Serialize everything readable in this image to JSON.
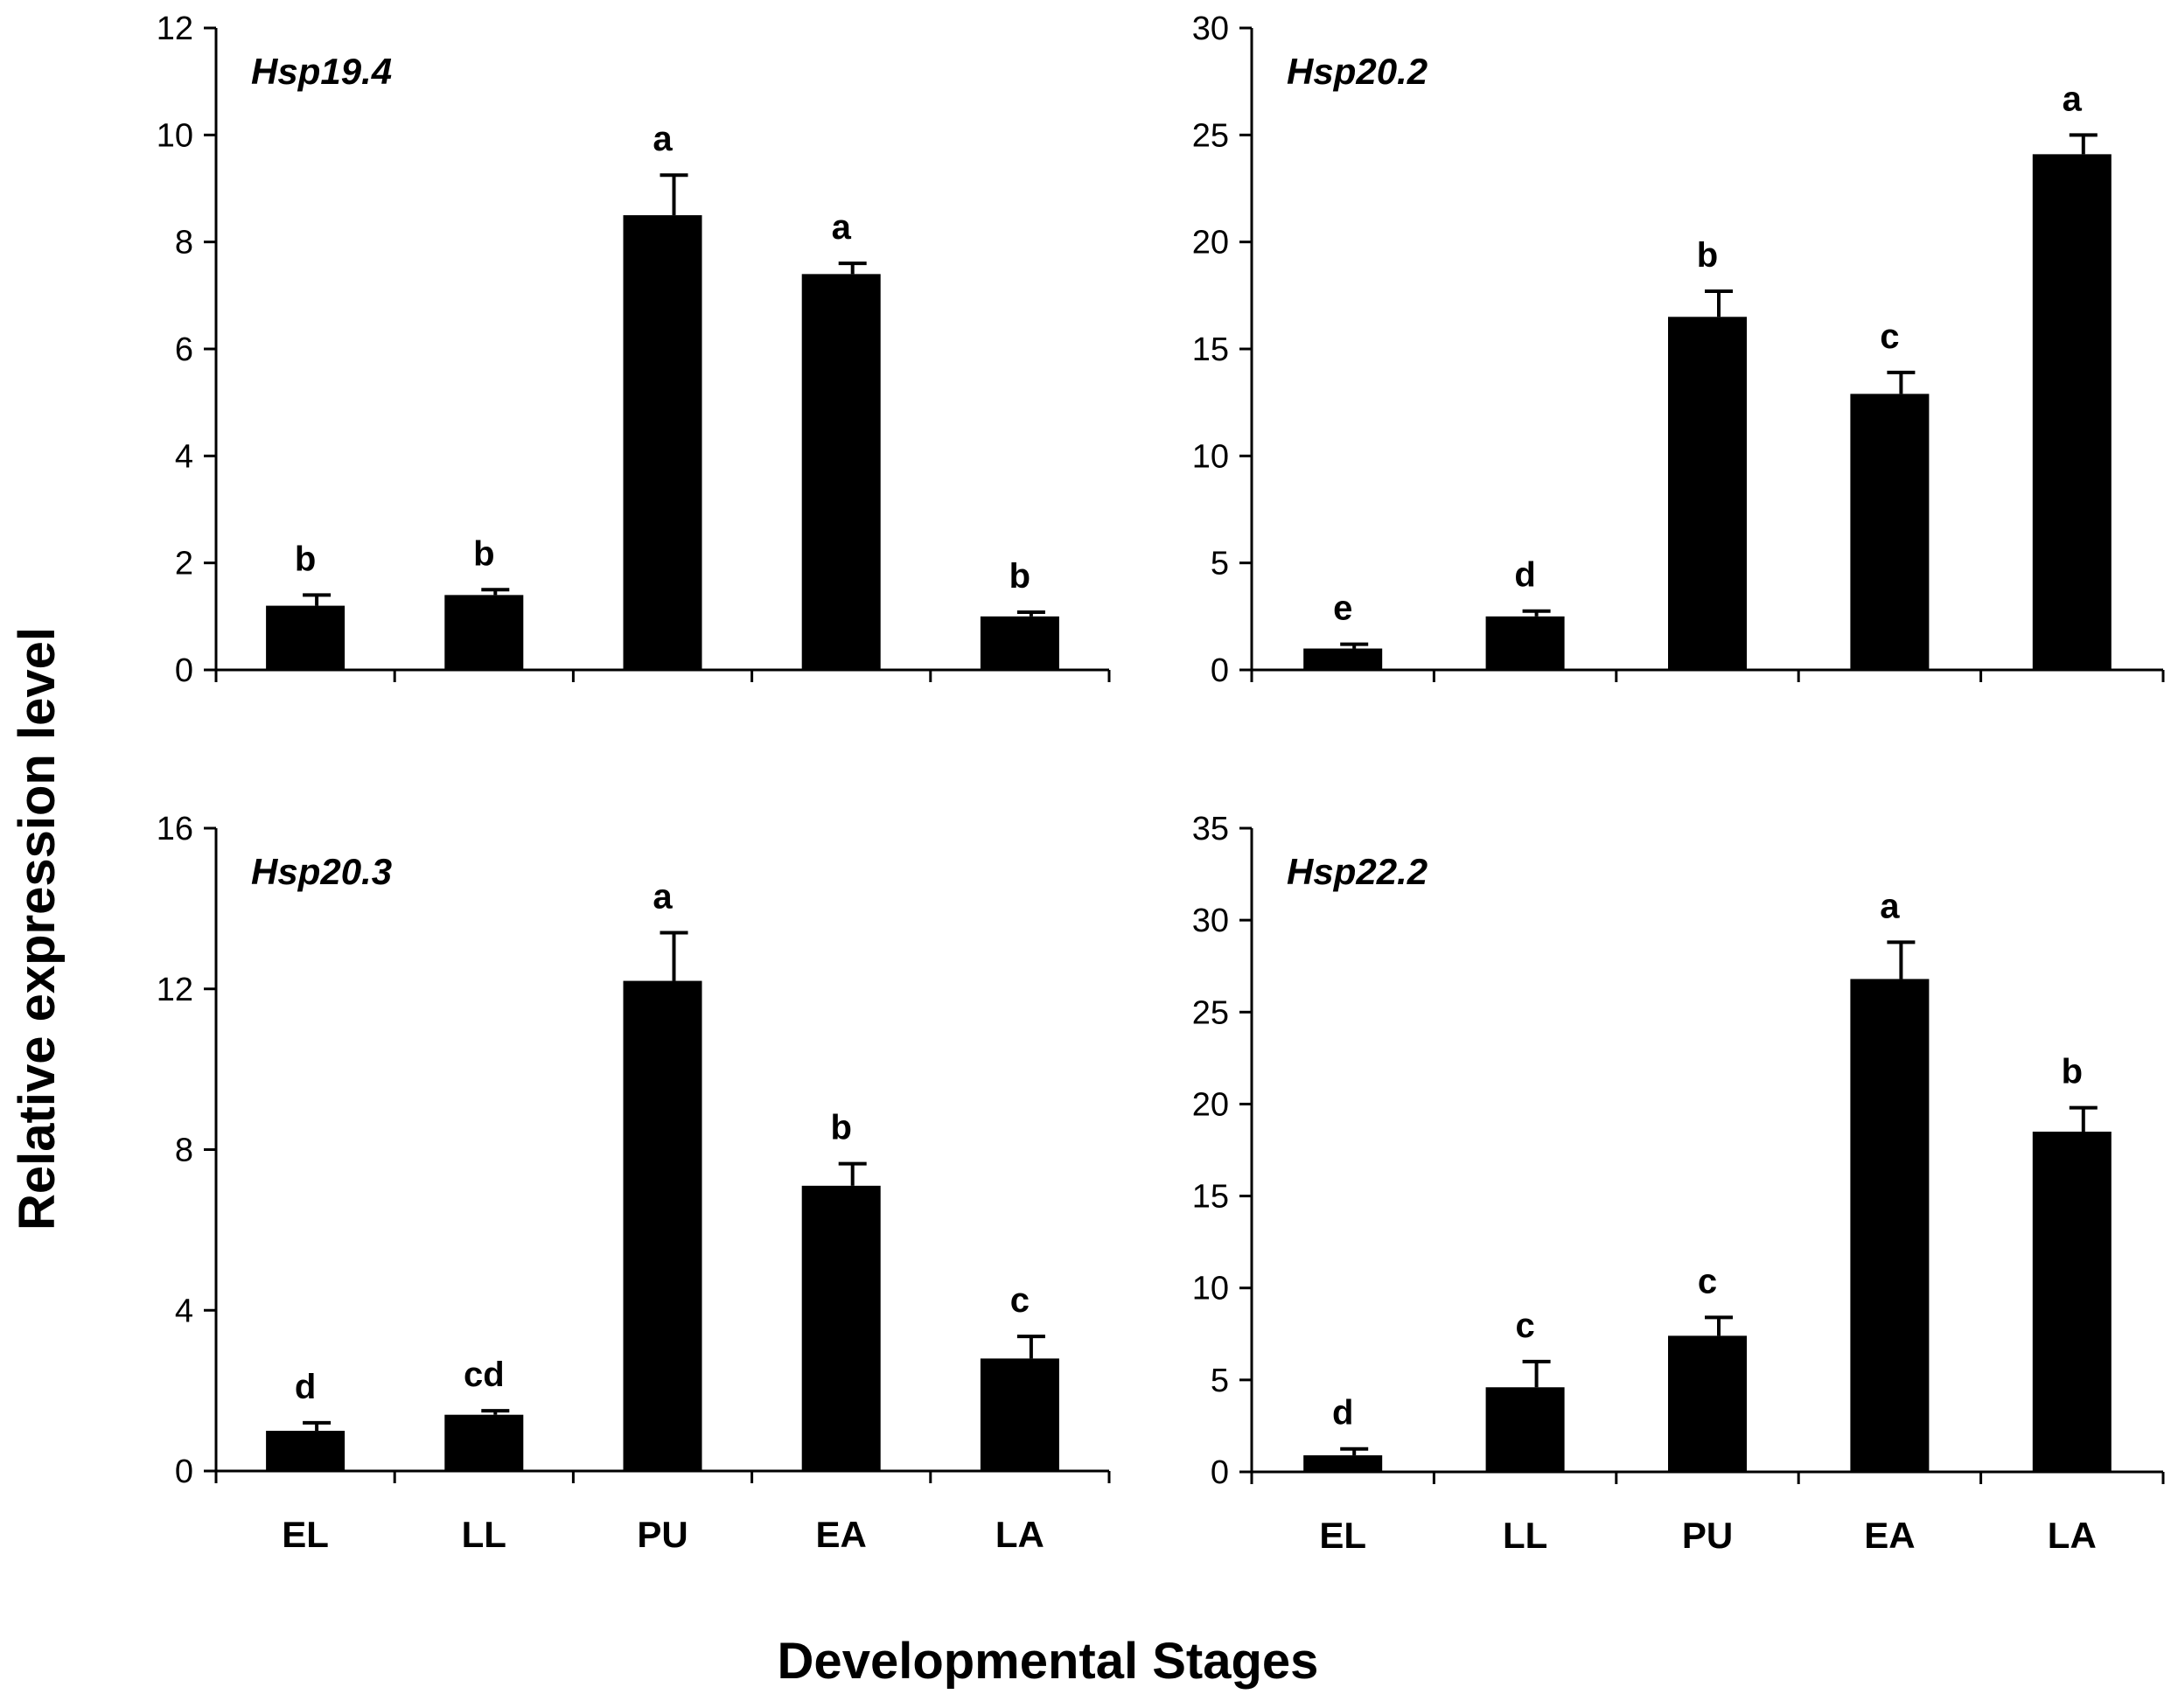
{
  "figure": {
    "ylabel": "Relative expression level",
    "xlabel": "Developmental Stages",
    "bar_color": "#000000"
  },
  "chart_data": [
    {
      "type": "bar",
      "title": "Hsp19.4",
      "categories": [
        "EL",
        "LL",
        "PU",
        "EA",
        "LA"
      ],
      "show_category_labels": false,
      "values": [
        1.2,
        1.4,
        8.5,
        7.4,
        1.0
      ],
      "errors": [
        0.2,
        0.1,
        0.75,
        0.2,
        0.08
      ],
      "letters": [
        "b",
        "b",
        "a",
        "a",
        "b"
      ],
      "ylim": [
        0,
        12
      ],
      "yticks": [
        0,
        2,
        4,
        6,
        8,
        10,
        12
      ]
    },
    {
      "type": "bar",
      "title": "Hsp20.2",
      "categories": [
        "EL",
        "LL",
        "PU",
        "EA",
        "LA"
      ],
      "show_category_labels": false,
      "values": [
        1.0,
        2.5,
        16.5,
        12.9,
        24.1
      ],
      "errors": [
        0.2,
        0.25,
        1.2,
        1.0,
        0.9
      ],
      "letters": [
        "e",
        "d",
        "b",
        "c",
        "a"
      ],
      "ylim": [
        0,
        30
      ],
      "yticks": [
        0,
        5,
        10,
        15,
        20,
        25,
        30
      ]
    },
    {
      "type": "bar",
      "title": "Hsp20.3",
      "categories": [
        "EL",
        "LL",
        "PU",
        "EA",
        "LA"
      ],
      "show_category_labels": true,
      "values": [
        1.0,
        1.4,
        12.2,
        7.1,
        2.8
      ],
      "errors": [
        0.2,
        0.1,
        1.2,
        0.55,
        0.55
      ],
      "letters": [
        "d",
        "cd",
        "a",
        "b",
        "c"
      ],
      "ylim": [
        0,
        16
      ],
      "yticks": [
        0,
        4,
        8,
        12,
        16
      ]
    },
    {
      "type": "bar",
      "title": "Hsp22.2",
      "categories": [
        "EL",
        "LL",
        "PU",
        "EA",
        "LA"
      ],
      "show_category_labels": true,
      "values": [
        0.9,
        4.6,
        7.4,
        26.8,
        18.5
      ],
      "errors": [
        0.35,
        1.4,
        1.0,
        2.0,
        1.3
      ],
      "letters": [
        "d",
        "c",
        "c",
        "a",
        "b"
      ],
      "ylim": [
        0,
        35
      ],
      "yticks": [
        0,
        5,
        10,
        15,
        20,
        25,
        30,
        35
      ]
    }
  ]
}
